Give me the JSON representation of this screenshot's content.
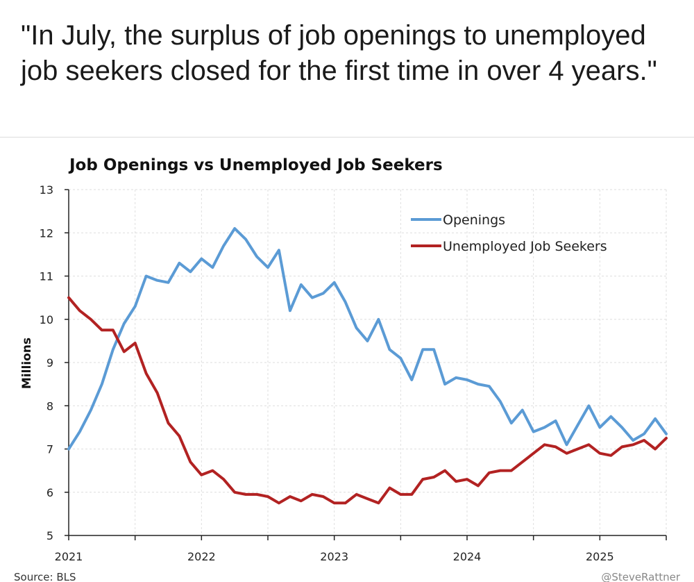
{
  "post": {
    "text": "\"In July, the surplus of job openings to unemployed job seekers closed for the first time in over 4 years.\""
  },
  "chart_data": {
    "type": "line",
    "title": "Job Openings vs Unemployed Job Seekers",
    "ylabel": "Millions",
    "xlabel": "",
    "ylim": [
      5,
      13
    ],
    "yticks": [
      5,
      6,
      7,
      8,
      9,
      10,
      11,
      12,
      13
    ],
    "xticks": [
      "2021",
      "2022",
      "2023",
      "2024",
      "2025"
    ],
    "xlim": [
      "2021-01",
      "2025-07"
    ],
    "grid": true,
    "legend_position": "top-right",
    "x": [
      "2021-01",
      "2021-02",
      "2021-03",
      "2021-04",
      "2021-05",
      "2021-06",
      "2021-07",
      "2021-08",
      "2021-09",
      "2021-10",
      "2021-11",
      "2021-12",
      "2022-01",
      "2022-02",
      "2022-03",
      "2022-04",
      "2022-05",
      "2022-06",
      "2022-07",
      "2022-08",
      "2022-09",
      "2022-10",
      "2022-11",
      "2022-12",
      "2023-01",
      "2023-02",
      "2023-03",
      "2023-04",
      "2023-05",
      "2023-06",
      "2023-07",
      "2023-08",
      "2023-09",
      "2023-10",
      "2023-11",
      "2023-12",
      "2024-01",
      "2024-02",
      "2024-03",
      "2024-04",
      "2024-05",
      "2024-06",
      "2024-07",
      "2024-08",
      "2024-09",
      "2024-10",
      "2024-11",
      "2024-12",
      "2025-01",
      "2025-02",
      "2025-03",
      "2025-04",
      "2025-05",
      "2025-06",
      "2025-07"
    ],
    "series": [
      {
        "name": "Openings",
        "color": "#5b9bd5",
        "values": [
          7.0,
          7.4,
          7.9,
          8.5,
          9.3,
          9.9,
          10.3,
          11.0,
          10.9,
          10.85,
          11.3,
          11.1,
          11.4,
          11.2,
          11.7,
          12.1,
          11.85,
          11.45,
          11.2,
          11.6,
          10.2,
          10.8,
          10.5,
          10.6,
          10.85,
          10.4,
          9.8,
          9.5,
          10.0,
          9.3,
          9.1,
          8.6,
          9.3,
          9.3,
          8.5,
          8.65,
          8.6,
          8.5,
          8.45,
          8.1,
          7.6,
          7.9,
          7.4,
          7.5,
          7.65,
          7.1,
          7.55,
          8.0,
          7.5,
          7.75,
          7.5,
          7.2,
          7.35,
          7.7,
          7.35
        ]
      },
      {
        "name": "Unemployed Job Seekers",
        "color": "#b22222",
        "values": [
          10.5,
          10.2,
          10.0,
          9.75,
          9.75,
          9.25,
          9.45,
          8.75,
          8.3,
          7.6,
          7.3,
          6.7,
          6.4,
          6.5,
          6.3,
          6.0,
          5.95,
          5.95,
          5.9,
          5.75,
          5.9,
          5.8,
          5.95,
          5.9,
          5.75,
          5.75,
          5.95,
          5.85,
          5.75,
          6.1,
          5.95,
          5.95,
          6.3,
          6.35,
          6.5,
          6.25,
          6.3,
          6.15,
          6.45,
          6.5,
          6.5,
          6.7,
          6.9,
          7.1,
          7.05,
          6.9,
          7.0,
          7.1,
          6.9,
          6.85,
          7.05,
          7.1,
          7.2,
          7.0,
          7.25
        ]
      }
    ]
  },
  "footer": {
    "source": "Source: BLS",
    "credit": "@SteveRattner"
  }
}
